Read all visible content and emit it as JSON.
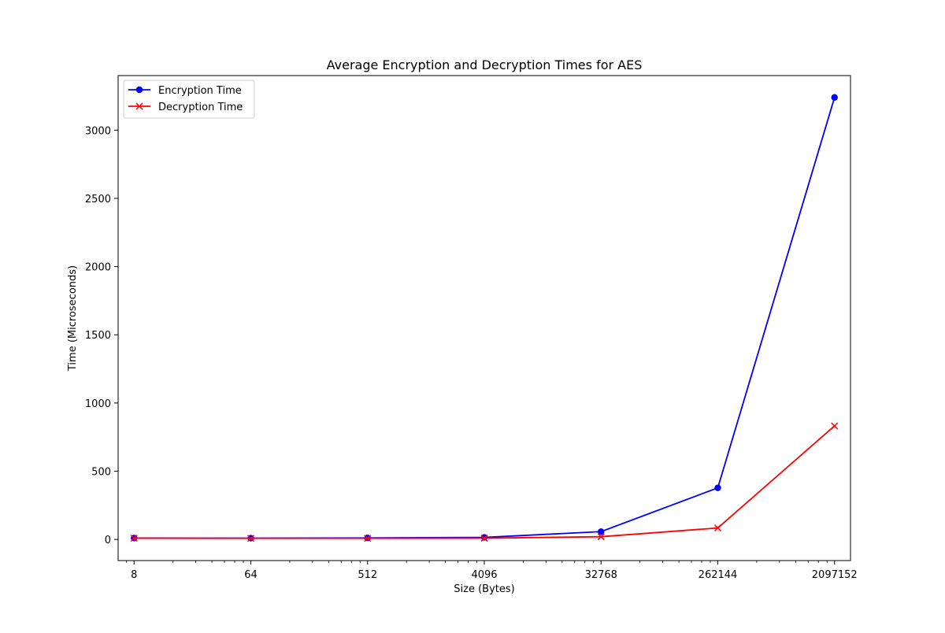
{
  "chart_data": {
    "type": "line",
    "title": "Average Encryption and Decryption Times for AES",
    "xlabel": "Size (Bytes)",
    "ylabel": "Time (Microseconds)",
    "x_scale": "log2",
    "x": [
      8,
      64,
      512,
      4096,
      32768,
      262144,
      2097152
    ],
    "x_tick_labels": [
      "8",
      "64",
      "512",
      "4096",
      "32768",
      "262144",
      "2097152"
    ],
    "y_ticks": [
      0,
      500,
      1000,
      1500,
      2000,
      2500,
      3000
    ],
    "y_tick_labels": [
      "0",
      "500",
      "1000",
      "1500",
      "2000",
      "2500",
      "3000"
    ],
    "ylim": [
      -155,
      3400
    ],
    "grid": false,
    "legend_position": "upper left",
    "series": [
      {
        "name": "Encryption Time",
        "color": "#0000ff",
        "marker": "circle",
        "values": [
          10,
          9,
          11,
          15,
          57,
          378,
          3240
        ]
      },
      {
        "name": "Decryption Time",
        "color": "#ff0000",
        "marker": "x",
        "values": [
          9,
          8,
          8,
          9,
          20,
          84,
          832
        ]
      }
    ]
  }
}
